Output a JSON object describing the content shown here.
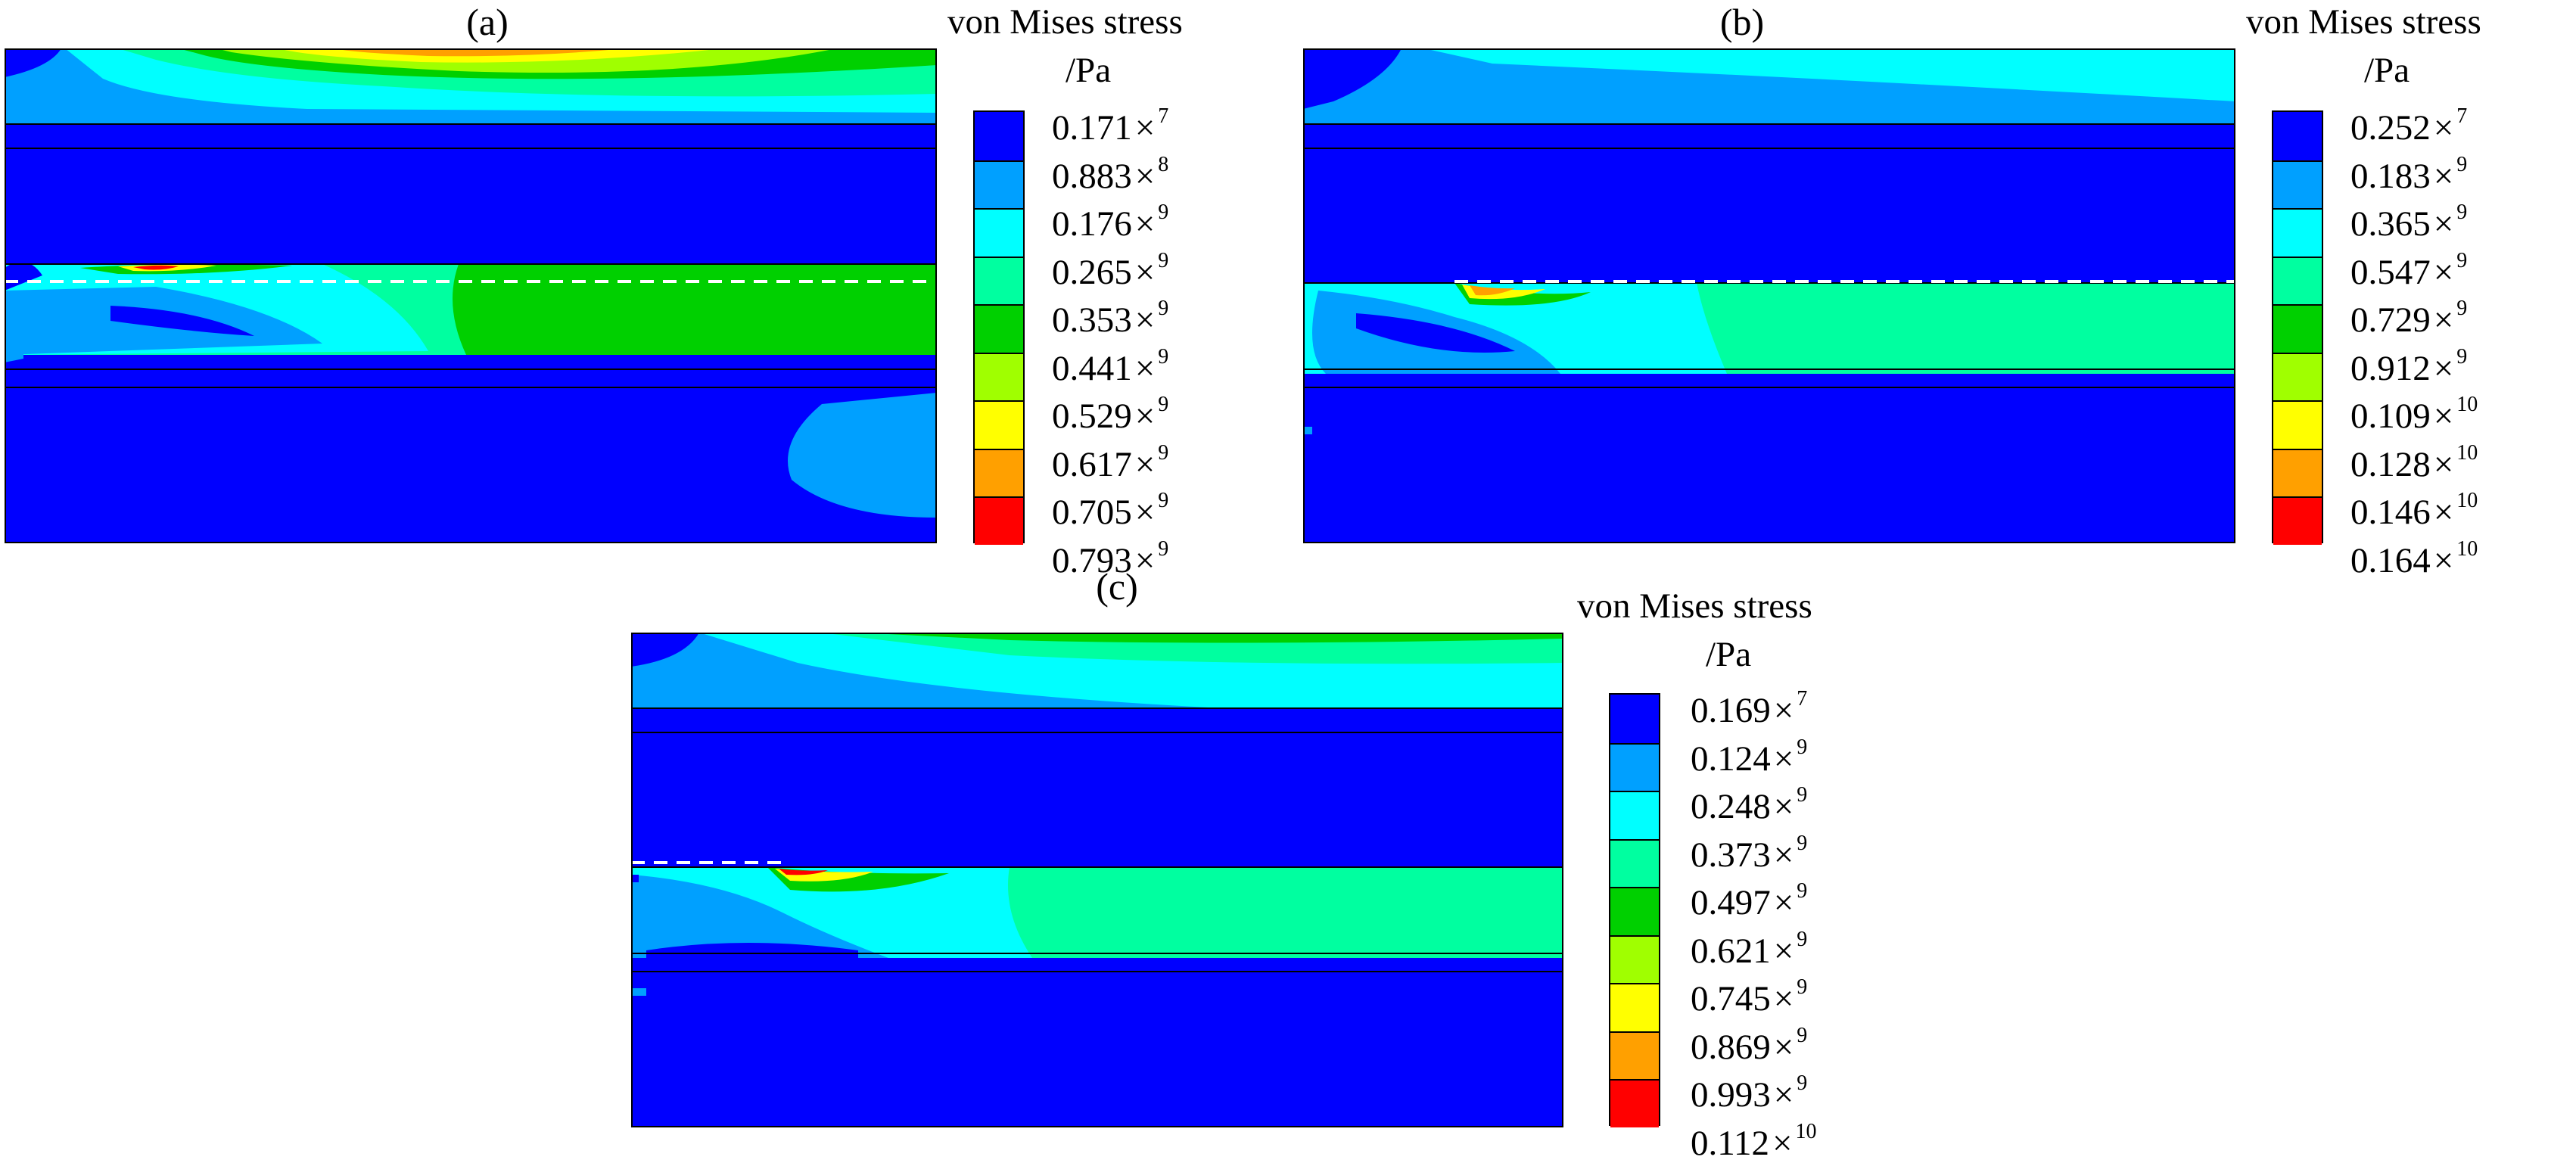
{
  "panels": [
    {
      "label": "(a)",
      "legend": {
        "title": "von Mises stress",
        "unit": "/Pa",
        "entries": [
          {
            "mantissa": "0.171",
            "times": "×",
            "exponent": "7"
          },
          {
            "mantissa": "0.883",
            "times": "×",
            "exponent": "8"
          },
          {
            "mantissa": "0.176",
            "times": "×",
            "exponent": "9"
          },
          {
            "mantissa": "0.265",
            "times": "×",
            "exponent": "9"
          },
          {
            "mantissa": "0.353",
            "times": "×",
            "exponent": "9"
          },
          {
            "mantissa": "0.441",
            "times": "×",
            "exponent": "9"
          },
          {
            "mantissa": "0.529",
            "times": "×",
            "exponent": "9"
          },
          {
            "mantissa": "0.617",
            "times": "×",
            "exponent": "9"
          },
          {
            "mantissa": "0.705",
            "times": "×",
            "exponent": "9"
          },
          {
            "mantissa": "0.793",
            "times": "×",
            "exponent": "9"
          }
        ]
      }
    },
    {
      "label": "(b)",
      "legend": {
        "title": "von Mises stress",
        "unit": "/Pa",
        "entries": [
          {
            "mantissa": "0.252",
            "times": "×",
            "exponent": "7"
          },
          {
            "mantissa": "0.183",
            "times": "×",
            "exponent": "9"
          },
          {
            "mantissa": "0.365",
            "times": "×",
            "exponent": "9"
          },
          {
            "mantissa": "0.547",
            "times": "×",
            "exponent": "9"
          },
          {
            "mantissa": "0.729",
            "times": "×",
            "exponent": "9"
          },
          {
            "mantissa": "0.912",
            "times": "×",
            "exponent": "9"
          },
          {
            "mantissa": "0.109",
            "times": "×",
            "exponent": "10"
          },
          {
            "mantissa": "0.128",
            "times": "×",
            "exponent": "10"
          },
          {
            "mantissa": "0.146",
            "times": "×",
            "exponent": "10"
          },
          {
            "mantissa": "0.164",
            "times": "×",
            "exponent": "10"
          }
        ]
      }
    },
    {
      "label": "(c)",
      "legend": {
        "title": "von Mises stress",
        "unit": "/Pa",
        "entries": [
          {
            "mantissa": "0.169",
            "times": "×",
            "exponent": "7"
          },
          {
            "mantissa": "0.124",
            "times": "×",
            "exponent": "9"
          },
          {
            "mantissa": "0.248",
            "times": "×",
            "exponent": "9"
          },
          {
            "mantissa": "0.373",
            "times": "×",
            "exponent": "9"
          },
          {
            "mantissa": "0.497",
            "times": "×",
            "exponent": "9"
          },
          {
            "mantissa": "0.621",
            "times": "×",
            "exponent": "9"
          },
          {
            "mantissa": "0.745",
            "times": "×",
            "exponent": "9"
          },
          {
            "mantissa": "0.869",
            "times": "×",
            "exponent": "9"
          },
          {
            "mantissa": "0.993",
            "times": "×",
            "exponent": "9"
          },
          {
            "mantissa": "0.112",
            "times": "×",
            "exponent": "10"
          }
        ]
      }
    }
  ],
  "colormap": [
    "#0000ff",
    "#00a0ff",
    "#00ffff",
    "#00ffa0",
    "#00d000",
    "#a0ff00",
    "#ffff00",
    "#ffa000",
    "#ff0000"
  ],
  "colors": {
    "layer_blue": "#0000ff",
    "dashed_line": "#ffffff",
    "boundary": "#000000"
  }
}
